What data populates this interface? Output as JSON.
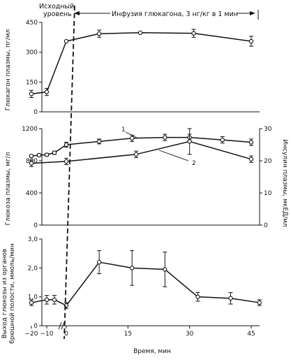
{
  "header": {
    "baseline_line1": "Исходный",
    "baseline_line2": "уровень",
    "infusion": "Инфузия глюкагона, 3 нг/кг в 1 мин"
  },
  "xaxis": {
    "label": "Время, мин",
    "ticks": [
      {
        "value": -20,
        "label": "−20"
      },
      {
        "value": -10,
        "label": "−10"
      },
      {
        "value": 0,
        "label": "0"
      },
      {
        "value": 15,
        "label": "15"
      },
      {
        "value": 30,
        "label": "30"
      },
      {
        "value": 45,
        "label": "45"
      }
    ]
  },
  "chart_data": [
    {
      "type": "line",
      "title": "",
      "ylabel": "Глюкагон плазмы, пг/мл",
      "ylim": [
        0,
        450
      ],
      "yticks": [
        0,
        150,
        300,
        450
      ],
      "series": [
        {
          "x": [
            -20,
            -10,
            0,
            8,
            18,
            31,
            45
          ],
          "y": [
            90,
            100,
            355,
            393,
            398,
            395,
            355
          ],
          "err": [
            18,
            18,
            0,
            18,
            0,
            20,
            25
          ]
        }
      ]
    },
    {
      "type": "line",
      "title": "",
      "ylabel": "Глюкоза плазмы, мг/л",
      "ylabel_right": "Инсулин плазмы, мкЕД/мл",
      "ylim": [
        0,
        1200
      ],
      "yticks": [
        0,
        400,
        800,
        1200
      ],
      "ylim_right": [
        0,
        30
      ],
      "yticks_right": [
        0,
        10,
        20,
        30
      ],
      "annotations": [
        "1",
        "2"
      ],
      "series": [
        {
          "name": "1",
          "axis": "left",
          "x": [
            -20,
            -15,
            -10,
            -5,
            0,
            8,
            16,
            24,
            30,
            38,
            45
          ],
          "y": [
            860,
            870,
            875,
            900,
            1000,
            1040,
            1080,
            1090,
            1090,
            1060,
            1030
          ],
          "err": [
            15,
            15,
            15,
            20,
            30,
            30,
            40,
            40,
            40,
            40,
            40
          ]
        },
        {
          "name": "2",
          "axis": "right",
          "x": [
            -20,
            0,
            17,
            30,
            45
          ],
          "y": [
            19.2,
            19.8,
            22,
            26,
            20.5
          ],
          "err": [
            1,
            1,
            1,
            4,
            1
          ]
        }
      ]
    },
    {
      "type": "line",
      "title": "",
      "ylabel": "Выход глюкозы из органов брюшной полости, ммоль/мин",
      "ylim": [
        0,
        3.0
      ],
      "yticks": [
        {
          "value": 0,
          "label": "0"
        },
        {
          "value": 1.0,
          "label": "1,0"
        },
        {
          "value": 2.0,
          "label": "2,0"
        },
        {
          "value": 3.0,
          "label": "3,0"
        }
      ],
      "series": [
        {
          "x": [
            -20,
            -10,
            -5,
            0,
            8,
            16,
            24,
            32,
            40,
            47
          ],
          "y": [
            0.8,
            0.9,
            0.9,
            0.7,
            2.2,
            2.0,
            1.95,
            1.0,
            0.95,
            0.8
          ],
          "err": [
            0.1,
            0.15,
            0.15,
            0.1,
            0.4,
            0.6,
            0.6,
            0.15,
            0.2,
            0.1
          ]
        }
      ]
    }
  ]
}
